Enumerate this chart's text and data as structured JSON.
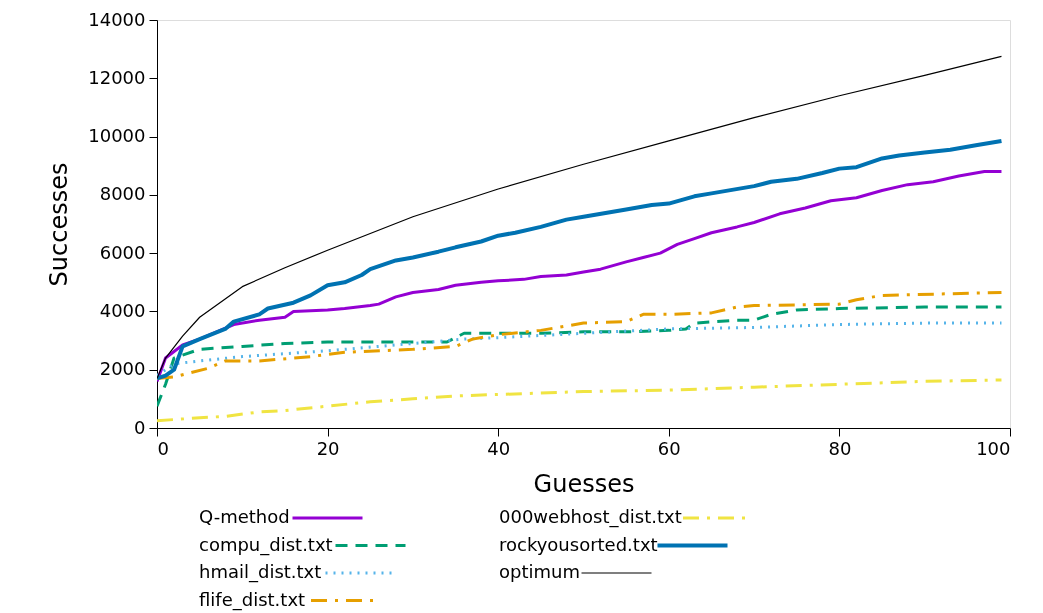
{
  "chart_data": {
    "type": "line",
    "xlabel": "Guesses",
    "ylabel": "Successes",
    "xlim": [
      0,
      100
    ],
    "xticks": [
      0,
      20,
      40,
      60,
      80,
      100
    ],
    "ylim": [
      0,
      14000
    ],
    "yticks": [
      0,
      2000,
      4000,
      6000,
      8000,
      10000,
      12000,
      14000
    ],
    "grid": false,
    "legend": "bottom",
    "marker": "none",
    "series": [
      {
        "name": "Q-method",
        "color": "#9400d3",
        "line_style": "solid",
        "x": [
          0,
          1,
          3,
          5,
          7,
          9,
          12,
          15,
          16,
          20,
          22,
          25,
          26,
          28,
          30,
          33,
          35,
          38,
          40,
          43,
          45,
          48,
          50,
          52,
          55,
          57,
          59,
          61,
          63,
          65,
          68,
          70,
          73,
          76,
          79,
          82,
          85,
          88,
          91,
          94,
          97,
          99
        ],
        "values": [
          1600,
          2400,
          2850,
          3050,
          3300,
          3550,
          3700,
          3800,
          4000,
          4050,
          4100,
          4200,
          4250,
          4500,
          4650,
          4750,
          4900,
          5000,
          5050,
          5100,
          5200,
          5250,
          5350,
          5450,
          5700,
          5850,
          6000,
          6300,
          6500,
          6700,
          6900,
          7050,
          7350,
          7550,
          7800,
          7900,
          8150,
          8350,
          8450,
          8650,
          8800,
          8800
        ]
      },
      {
        "name": "compu_dist.txt",
        "color": "#009e73",
        "line_style": "dashed",
        "x": [
          0,
          1,
          2,
          5,
          10,
          15,
          20,
          30,
          34,
          36,
          45,
          50,
          55,
          60,
          62,
          63,
          68,
          70,
          72,
          75,
          80,
          90,
          99
        ],
        "values": [
          750,
          1500,
          2400,
          2700,
          2800,
          2900,
          2950,
          2950,
          2950,
          3250,
          3250,
          3300,
          3300,
          3350,
          3400,
          3600,
          3700,
          3700,
          3900,
          4050,
          4100,
          4150,
          4150
        ]
      },
      {
        "name": "hmail_dist.txt",
        "color": "#56b4e9",
        "line_style": "dotted",
        "x": [
          0,
          2,
          5,
          10,
          20,
          30,
          36,
          40,
          50,
          60,
          70,
          80,
          90,
          99
        ],
        "values": [
          1800,
          2200,
          2300,
          2450,
          2650,
          2900,
          3050,
          3100,
          3250,
          3400,
          3450,
          3550,
          3600,
          3600
        ]
      },
      {
        "name": "flife_dist.txt",
        "color": "#e69f00",
        "line_style": "dashdot",
        "x": [
          0,
          2,
          4,
          6,
          8,
          12,
          14,
          18,
          22,
          30,
          35,
          37,
          40,
          45,
          50,
          55,
          57,
          60,
          65,
          68,
          70,
          80,
          82,
          85,
          99
        ],
        "values": [
          1700,
          1750,
          1900,
          2050,
          2300,
          2300,
          2350,
          2450,
          2600,
          2700,
          2800,
          3050,
          3200,
          3350,
          3600,
          3650,
          3900,
          3900,
          3950,
          4150,
          4200,
          4250,
          4400,
          4550,
          4650
        ]
      },
      {
        "name": "000webhost_dist.txt",
        "color": "#f0e442",
        "line_style": "dashdot",
        "x": [
          0,
          5,
          8,
          12,
          15,
          20,
          25,
          30,
          35,
          40,
          50,
          60,
          70,
          80,
          90,
          99
        ],
        "values": [
          250,
          350,
          400,
          550,
          600,
          750,
          900,
          1000,
          1100,
          1150,
          1250,
          1300,
          1400,
          1500,
          1600,
          1650
        ]
      },
      {
        "name": "rockyousorted.txt",
        "color": "#0072b2",
        "line_style": "solid",
        "x": [
          0,
          1,
          2,
          3,
          5,
          8,
          9,
          12,
          13,
          16,
          18,
          20,
          22,
          24,
          25,
          28,
          30,
          33,
          35,
          38,
          40,
          42,
          45,
          48,
          50,
          55,
          58,
          60,
          63,
          65,
          70,
          72,
          75,
          78,
          80,
          82,
          85,
          87,
          90,
          93,
          96,
          99
        ],
        "values": [
          1700,
          1800,
          2000,
          2800,
          3050,
          3400,
          3650,
          3900,
          4100,
          4300,
          4550,
          4900,
          5000,
          5250,
          5450,
          5750,
          5850,
          6050,
          6200,
          6400,
          6600,
          6700,
          6900,
          7150,
          7250,
          7500,
          7650,
          7700,
          7950,
          8050,
          8300,
          8450,
          8550,
          8750,
          8900,
          8950,
          9250,
          9350,
          9450,
          9550,
          9700,
          9850
        ]
      },
      {
        "name": "optimum",
        "color": "#000000",
        "line_style": "solid",
        "x": [
          0,
          1,
          3,
          5,
          10,
          15,
          20,
          30,
          40,
          50,
          60,
          70,
          80,
          90,
          99
        ],
        "values": [
          1700,
          2400,
          3150,
          3800,
          4850,
          5500,
          6100,
          7250,
          8200,
          9050,
          9850,
          10650,
          11400,
          12100,
          12750
        ]
      }
    ]
  }
}
